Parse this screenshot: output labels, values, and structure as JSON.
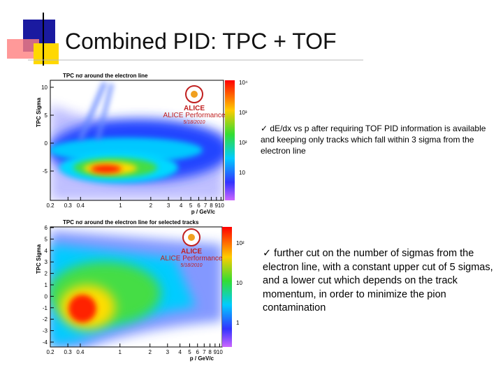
{
  "title": "Combined PID: TPC + TOF",
  "figures": [
    {
      "title": "TPC nσ around the electron line",
      "y_label": "TPC Sigma",
      "x_label": "p / GeV/c",
      "y_ticks": [
        10,
        5,
        0,
        -5
      ],
      "x_ticks": [
        0.2,
        0.3,
        0.4,
        1,
        2,
        3,
        4,
        5,
        6,
        7,
        8,
        9,
        10
      ],
      "colorbar_ticks": [
        "10⁴",
        "10³",
        "10²",
        "10"
      ],
      "logo": {
        "name": "ALICE",
        "caption": "ALICE Performance",
        "date": "5/18/2010"
      }
    },
    {
      "title": "TPC nσ around the electron line for selected tracks",
      "y_label": "TPC Sigma",
      "x_label": "p / GeV/c",
      "y_ticks": [
        6,
        5,
        4,
        3,
        2,
        1,
        0,
        -1,
        -2,
        -3,
        -4
      ],
      "x_ticks": [
        0.2,
        0.3,
        0.4,
        1,
        2,
        3,
        4,
        5,
        6,
        7,
        8,
        9,
        10
      ],
      "colorbar_ticks": [
        "10²",
        "10",
        "1"
      ],
      "logo": {
        "name": "ALICE",
        "caption": "ALICE Performance",
        "date": "5/18/2010"
      }
    }
  ],
  "bullets": [
    "✓ dE/dx vs p after requiring TOF PID information is available and keeping only tracks which fall within 3 sigma from the electron line",
    "✓ further cut on the number of sigmas from the electron line, with a constant upper cut of 5 sigmas, and a lower cut which depends on the track momentum, in order to minimize the pion contamination"
  ]
}
